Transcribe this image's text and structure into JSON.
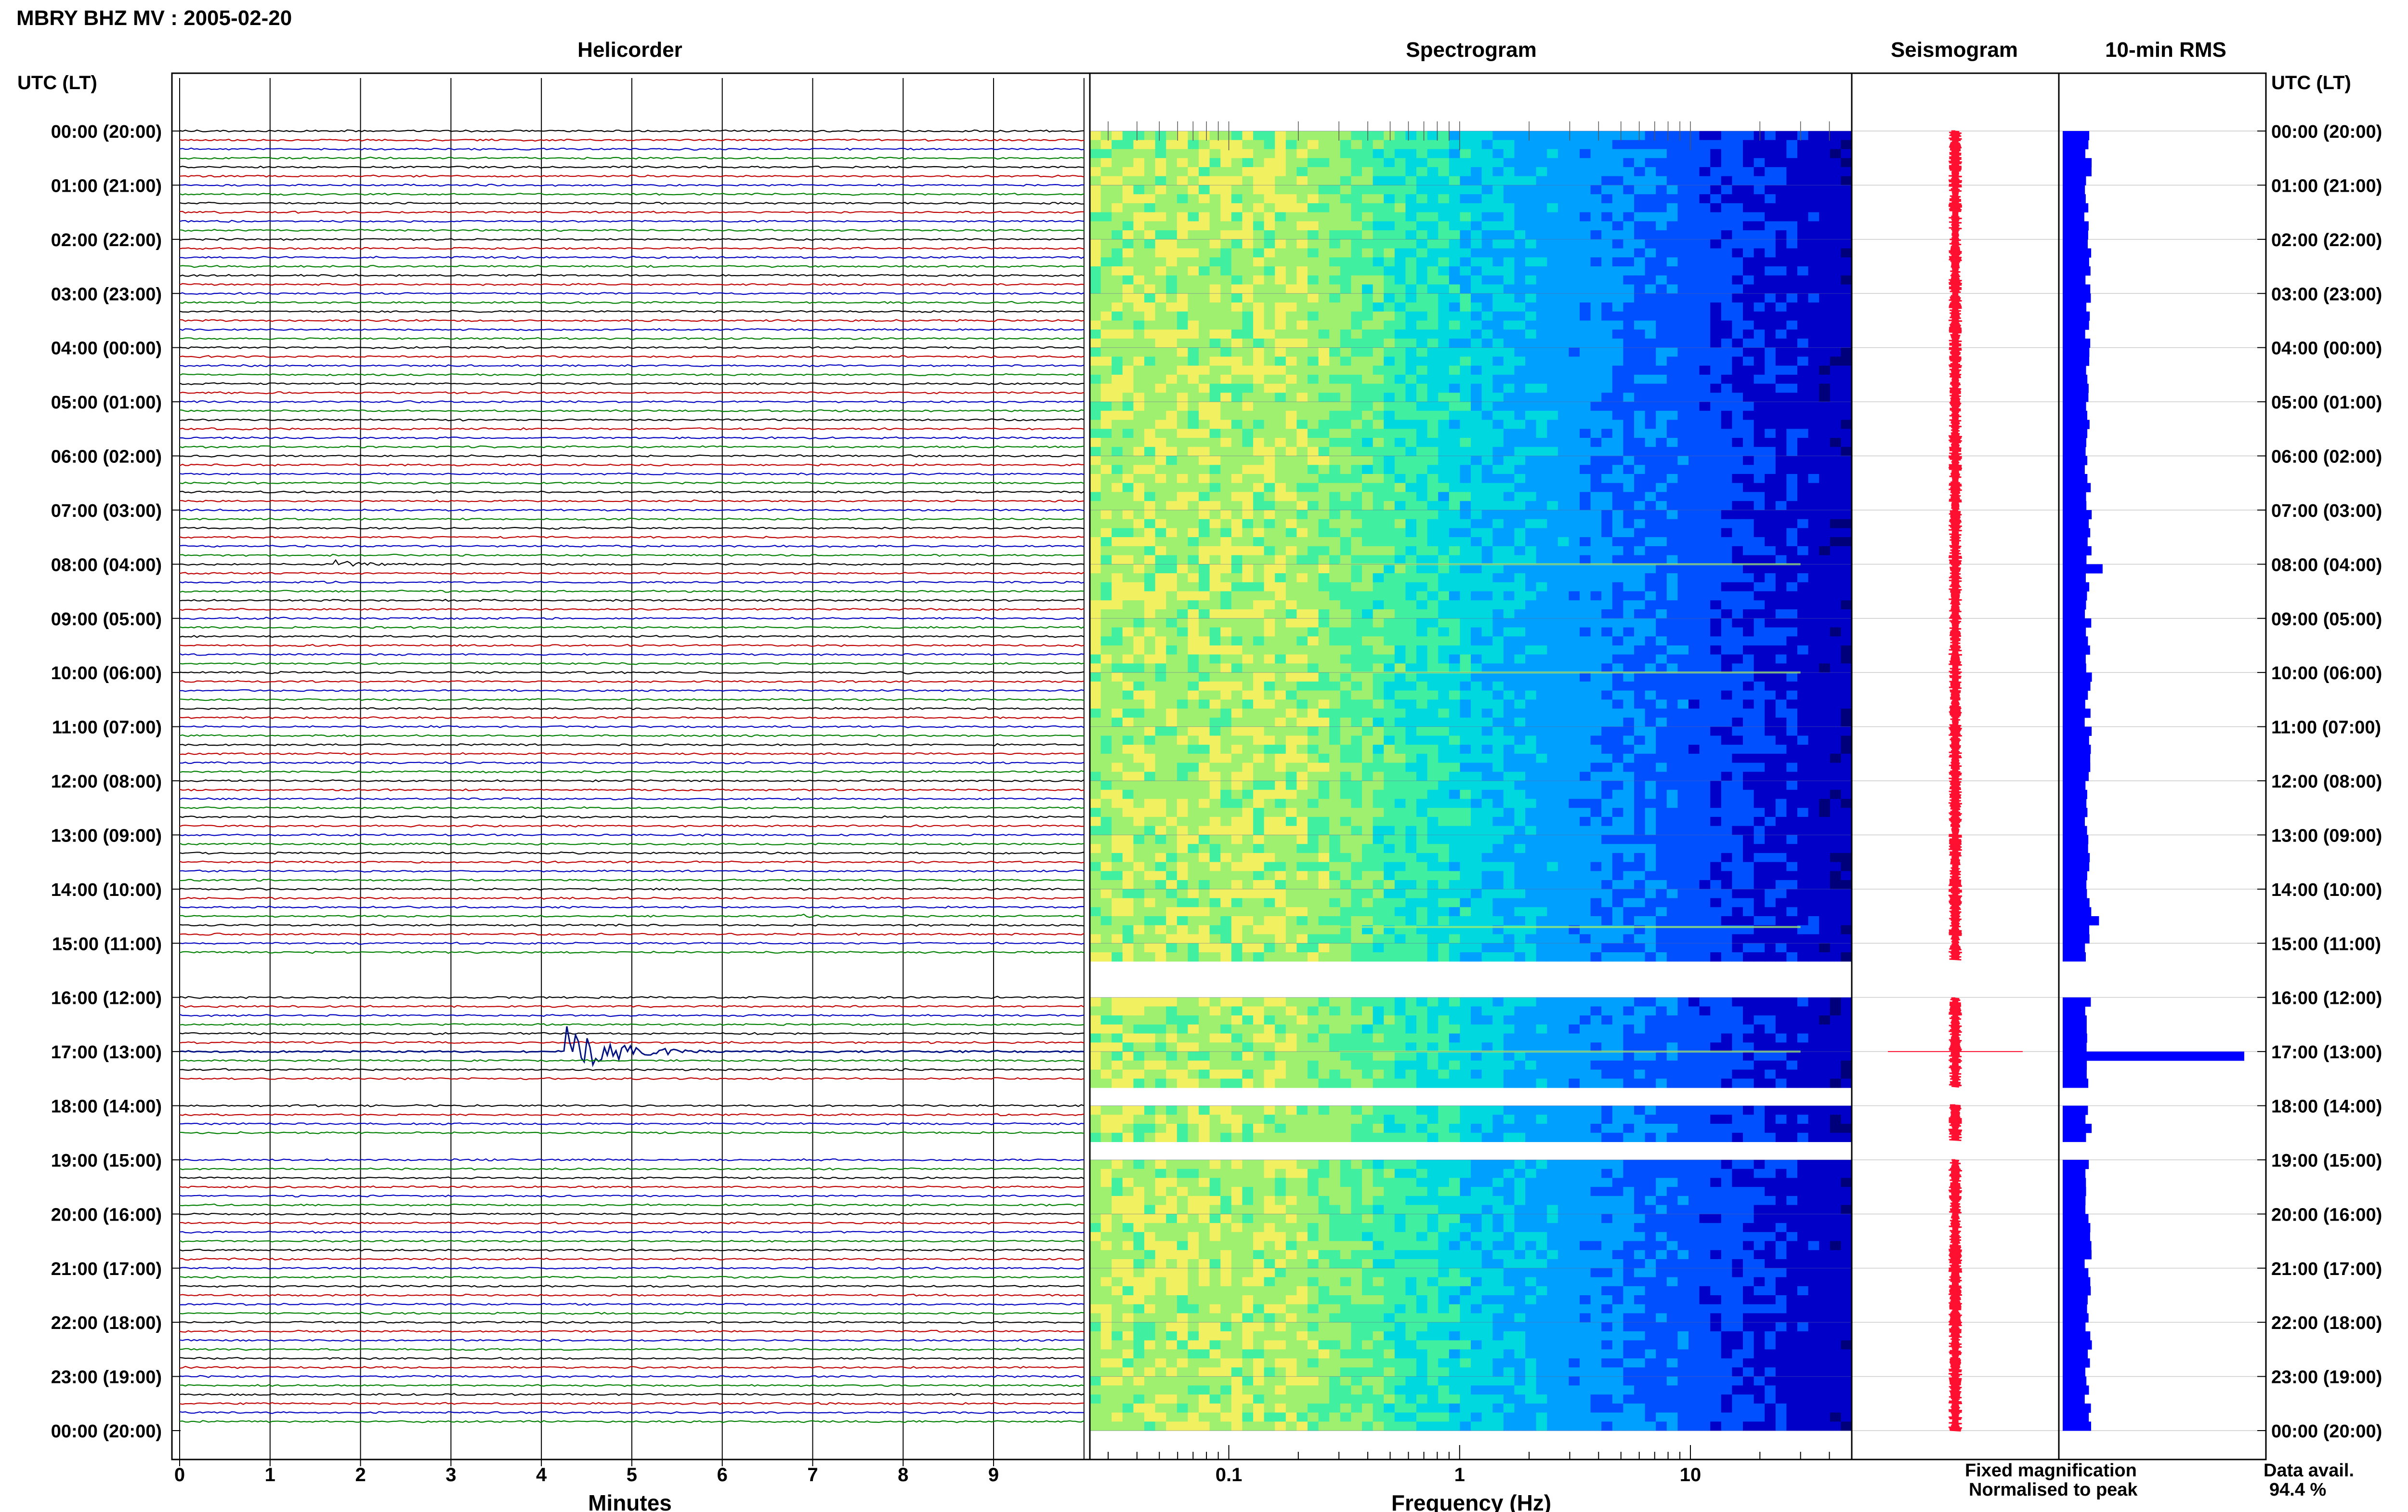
{
  "title": "MBRY BHZ MV : 2005-02-20",
  "time_header_left": "UTC (LT)",
  "time_header_right": "UTC (LT)",
  "panels": {
    "helicorder": "Helicorder",
    "spectrogram": "Spectrogram",
    "seismogram": "Seismogram",
    "rms": "10-min RMS"
  },
  "xlabels": {
    "helicorder": "Minutes",
    "spectrogram": "Frequency (Hz)"
  },
  "legend": {
    "fixed": "Fixed magnification",
    "normalised": "Normalised to peak",
    "fixed_color": "#1010ff",
    "normalised_color": "#ff1030"
  },
  "data_avail": {
    "label": "Data avail.",
    "value": "94.4 %"
  },
  "chart_data": [
    {
      "type": "line",
      "title": "Helicorder",
      "xlabel": "Minutes",
      "ylabel": "UTC (LT)",
      "xlim": [
        0,
        10
      ],
      "x_ticks": [
        "0",
        "1",
        "2",
        "3",
        "4",
        "5",
        "6",
        "7",
        "8",
        "9"
      ],
      "time_ticks": [
        "00:00 (20:00)",
        "01:00 (21:00)",
        "02:00 (22:00)",
        "03:00 (23:00)",
        "04:00 (00:00)",
        "05:00 (01:00)",
        "06:00 (02:00)",
        "07:00 (03:00)",
        "08:00 (04:00)",
        "09:00 (05:00)",
        "10:00 (06:00)",
        "11:00 (07:00)",
        "12:00 (08:00)",
        "13:00 (09:00)",
        "14:00 (10:00)",
        "15:00 (11:00)",
        "16:00 (12:00)",
        "17:00 (13:00)",
        "18:00 (14:00)",
        "19:00 (15:00)",
        "20:00 (16:00)",
        "21:00 (17:00)",
        "22:00 (18:00)",
        "23:00 (19:00)",
        "00:00 (20:00)"
      ],
      "trace_colors": [
        "#000000",
        "#c00000",
        "#0000c0",
        "#008000"
      ],
      "traces_per_hour": 6,
      "data_gaps_hours": [
        [
          15.3,
          16.0
        ],
        [
          17.65,
          17.98
        ],
        [
          18.65,
          19.0
        ]
      ],
      "events": [
        {
          "hour": 8.0,
          "minute_start": 1.7,
          "minute_end": 2.5,
          "amplitude": 0.15
        },
        {
          "hour": 10.0,
          "minute_start": 8.0,
          "minute_end": 8.3,
          "amplitude": 0.1
        },
        {
          "hour": 14.5,
          "minute_start": 6.8,
          "minute_end": 7.5,
          "amplitude": 0.08
        },
        {
          "hour": 17.0,
          "minute_start": 4.25,
          "minute_end": 6.0,
          "amplitude": 1.0
        }
      ]
    },
    {
      "type": "heatmap",
      "title": "Spectrogram",
      "xlabel": "Frequency (Hz)",
      "x_scale": "log",
      "xlim": [
        0.025,
        50
      ],
      "x_ticks": [
        "0.1",
        "1",
        "10"
      ],
      "colormap": [
        "#00007a",
        "#0000c8",
        "#0050ff",
        "#00a0ff",
        "#00d8e0",
        "#40f0a0",
        "#a0f070",
        "#f0f060"
      ],
      "data_gaps_hours": [
        [
          15.3,
          16.0
        ],
        [
          17.65,
          17.98
        ],
        [
          18.65,
          19.0
        ]
      ],
      "bright_lines_hours": [
        8.0,
        10.0,
        14.7,
        17.0
      ]
    },
    {
      "type": "line",
      "title": "Seismogram",
      "color": "#ff1030",
      "data_gaps_hours": [
        [
          15.3,
          16.0
        ],
        [
          17.65,
          17.98
        ],
        [
          18.65,
          19.0
        ]
      ],
      "spike_hour": 17.0
    },
    {
      "type": "bar",
      "title": "10-min RMS",
      "color": "#0000ff",
      "orientation": "horizontal",
      "baseline_level": 0.14,
      "peak": {
        "hour": 17.0,
        "value": 1.0
      },
      "minor_peaks": [
        {
          "hour": 8.0,
          "value": 0.22
        },
        {
          "hour": 14.5,
          "value": 0.2
        }
      ],
      "data_gaps_hours": [
        [
          15.3,
          16.0
        ],
        [
          17.65,
          17.98
        ],
        [
          18.65,
          19.0
        ]
      ]
    }
  ]
}
